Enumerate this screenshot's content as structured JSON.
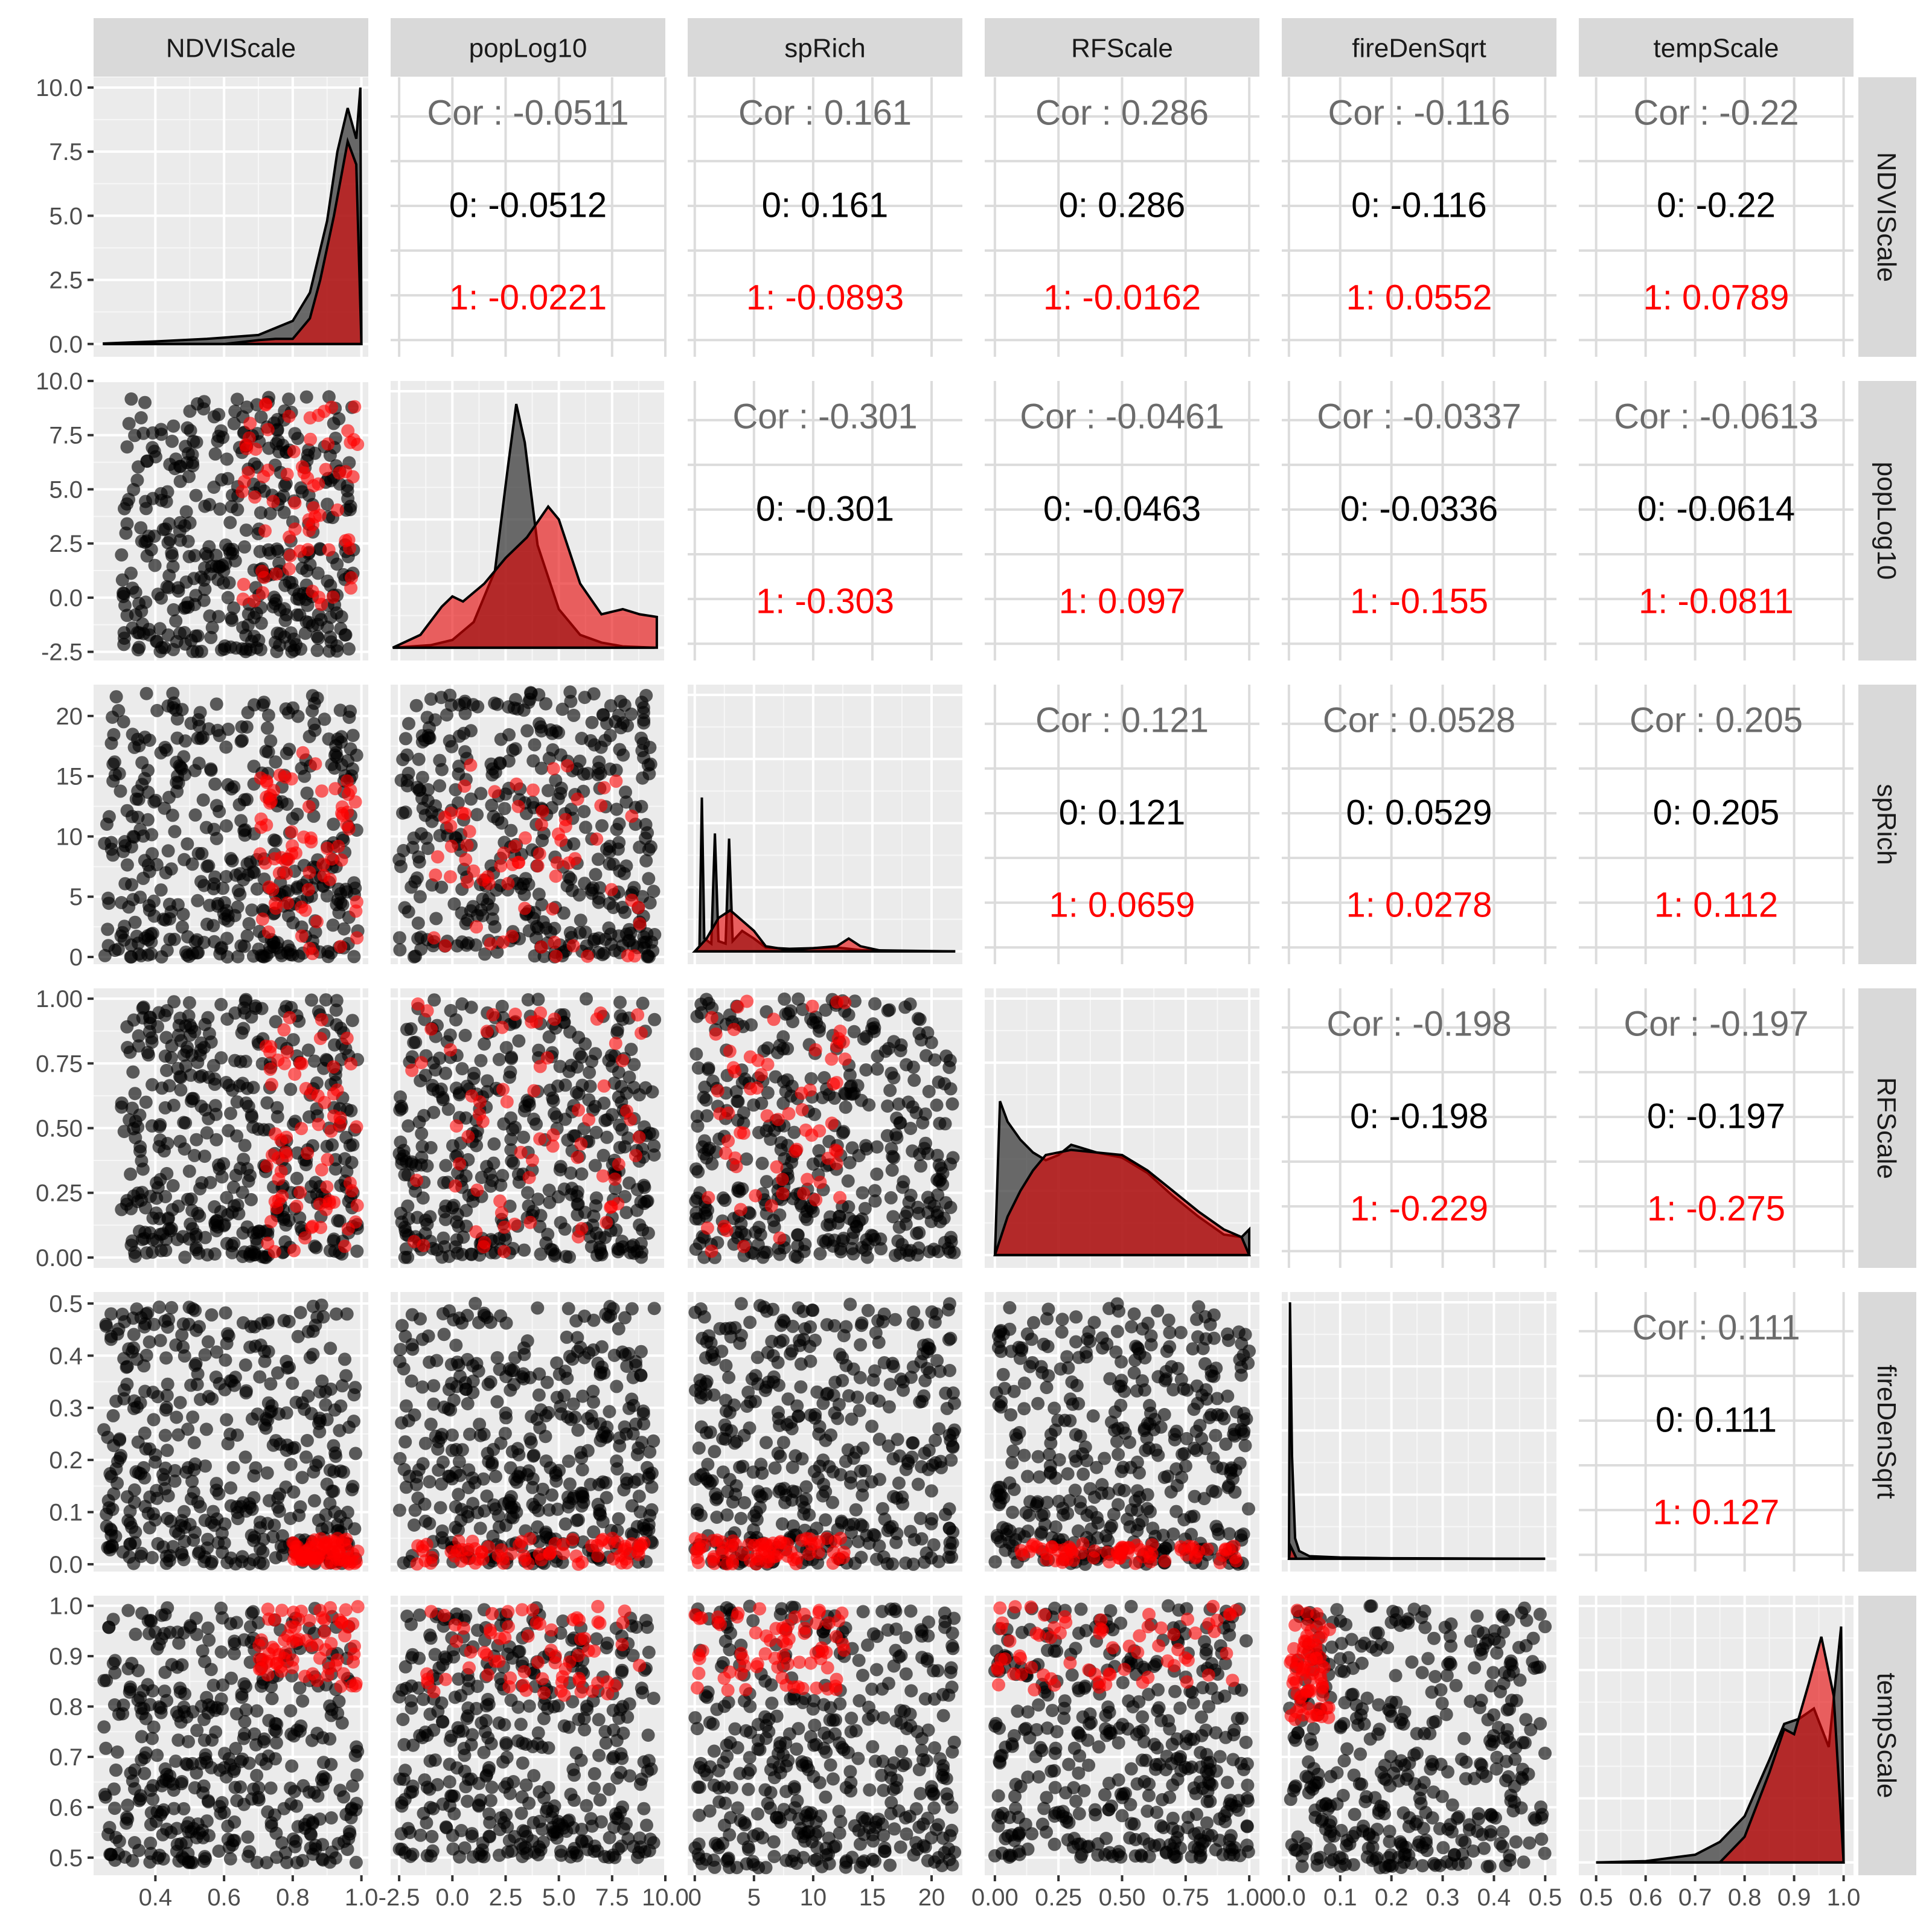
{
  "chart_data": {
    "type": "scatter",
    "title": "",
    "grid": true,
    "legend": "none",
    "group_colors": {
      "0": "#000000",
      "1": "#ff0000"
    },
    "variables": [
      {
        "name": "NDVIScale",
        "range": [
          0.22,
          1.02
        ],
        "ticks": [
          0.4,
          0.6,
          0.8,
          1.0
        ],
        "tick_labels": [
          "0.4",
          "0.6",
          "0.8",
          "1.0"
        ]
      },
      {
        "name": "popLog10",
        "range": [
          -2.9,
          10.0
        ],
        "ticks": [
          -2.5,
          0.0,
          2.5,
          5.0,
          7.5,
          10.0
        ],
        "tick_labels": [
          "-2.5",
          "0.0",
          "2.5",
          "5.0",
          "7.5",
          "10.0"
        ]
      },
      {
        "name": "spRich",
        "range": [
          -0.6,
          22.6
        ],
        "ticks": [
          0,
          5,
          10,
          15,
          20
        ],
        "tick_labels": [
          "0",
          "5",
          "10",
          "15",
          "20"
        ]
      },
      {
        "name": "RFScale",
        "range": [
          -0.04,
          1.04
        ],
        "ticks": [
          0.0,
          0.25,
          0.5,
          0.75,
          1.0
        ],
        "tick_labels": [
          "0.00",
          "0.25",
          "0.50",
          "0.75",
          "1.00"
        ]
      },
      {
        "name": "fireDenSqrt",
        "range": [
          -0.014,
          0.522
        ],
        "ticks": [
          0.0,
          0.1,
          0.2,
          0.3,
          0.4,
          0.5
        ],
        "tick_labels": [
          "0.0",
          "0.1",
          "0.2",
          "0.3",
          "0.4",
          "0.5"
        ]
      },
      {
        "name": "tempScale",
        "range": [
          0.465,
          1.02
        ],
        "ticks": [
          0.5,
          0.6,
          0.7,
          0.8,
          0.9,
          1.0
        ],
        "tick_labels": [
          "0.5",
          "0.6",
          "0.7",
          "0.8",
          "0.9",
          "1.0"
        ]
      }
    ],
    "diag_y_axis": {
      "range": [
        -0.5,
        10.4
      ],
      "ticks": [
        0.0,
        2.5,
        5.0,
        7.5,
        10.0
      ],
      "tick_labels": [
        "0.0",
        "2.5",
        "5.0",
        "7.5",
        "10.0"
      ]
    },
    "correlations": [
      {
        "row": "NDVIScale",
        "col": "popLog10",
        "cor": "Cor : -0.0511",
        "g0": "0: -0.0512",
        "g1": "1: -0.0221"
      },
      {
        "row": "NDVIScale",
        "col": "spRich",
        "cor": "Cor : 0.161",
        "g0": "0: 0.161",
        "g1": "1: -0.0893"
      },
      {
        "row": "NDVIScale",
        "col": "RFScale",
        "cor": "Cor : 0.286",
        "g0": "0: 0.286",
        "g1": "1: -0.0162"
      },
      {
        "row": "NDVIScale",
        "col": "fireDenSqrt",
        "cor": "Cor : -0.116",
        "g0": "0: -0.116",
        "g1": "1: 0.0552"
      },
      {
        "row": "NDVIScale",
        "col": "tempScale",
        "cor": "Cor : -0.22",
        "g0": "0: -0.22",
        "g1": "1: 0.0789"
      },
      {
        "row": "popLog10",
        "col": "spRich",
        "cor": "Cor : -0.301",
        "g0": "0: -0.301",
        "g1": "1: -0.303"
      },
      {
        "row": "popLog10",
        "col": "RFScale",
        "cor": "Cor : -0.0461",
        "g0": "0: -0.0463",
        "g1": "1: 0.097"
      },
      {
        "row": "popLog10",
        "col": "fireDenSqrt",
        "cor": "Cor : -0.0337",
        "g0": "0: -0.0336",
        "g1": "1: -0.155"
      },
      {
        "row": "popLog10",
        "col": "tempScale",
        "cor": "Cor : -0.0613",
        "g0": "0: -0.0614",
        "g1": "1: -0.0811"
      },
      {
        "row": "spRich",
        "col": "RFScale",
        "cor": "Cor : 0.121",
        "g0": "0: 0.121",
        "g1": "1: 0.0659"
      },
      {
        "row": "spRich",
        "col": "fireDenSqrt",
        "cor": "Cor : 0.0528",
        "g0": "0: 0.0529",
        "g1": "1: 0.0278"
      },
      {
        "row": "spRich",
        "col": "tempScale",
        "cor": "Cor : 0.205",
        "g0": "0: 0.205",
        "g1": "1: 0.112"
      },
      {
        "row": "RFScale",
        "col": "fireDenSqrt",
        "cor": "Cor : -0.198",
        "g0": "0: -0.198",
        "g1": "1: -0.229"
      },
      {
        "row": "RFScale",
        "col": "tempScale",
        "cor": "Cor : -0.197",
        "g0": "0: -0.197",
        "g1": "1: -0.275"
      },
      {
        "row": "fireDenSqrt",
        "col": "tempScale",
        "cor": "Cor : 0.111",
        "g0": "0: 0.111",
        "g1": "1: 0.127"
      }
    ],
    "densities": [
      {
        "var": "NDVIScale",
        "g0": [
          [
            0.25,
            0.02
          ],
          [
            0.4,
            0.1
          ],
          [
            0.55,
            0.2
          ],
          [
            0.7,
            0.35
          ],
          [
            0.8,
            0.9
          ],
          [
            0.85,
            2.0
          ],
          [
            0.9,
            4.8
          ],
          [
            0.93,
            7.5
          ],
          [
            0.96,
            9.2
          ],
          [
            0.985,
            8.0
          ],
          [
            0.997,
            10.0
          ],
          [
            1.0,
            0.0
          ]
        ],
        "g1": [
          [
            0.25,
            0.0
          ],
          [
            0.6,
            0.0
          ],
          [
            0.7,
            0.15
          ],
          [
            0.75,
            0.2
          ],
          [
            0.8,
            0.2
          ],
          [
            0.85,
            1.0
          ],
          [
            0.88,
            2.5
          ],
          [
            0.92,
            5.0
          ],
          [
            0.96,
            7.9
          ],
          [
            0.985,
            7.0
          ],
          [
            1.0,
            0.0
          ]
        ]
      },
      {
        "var": "popLog10",
        "g0": [
          [
            -2.8,
            0.0
          ],
          [
            -1,
            0.1
          ],
          [
            0,
            0.3
          ],
          [
            1,
            1.0
          ],
          [
            2,
            3.0
          ],
          [
            2.6,
            7.0
          ],
          [
            3,
            9.5
          ],
          [
            3.4,
            8.0
          ],
          [
            4,
            4.0
          ],
          [
            5,
            1.5
          ],
          [
            6,
            0.5
          ],
          [
            7,
            0.2
          ],
          [
            8,
            0.05
          ],
          [
            9.5,
            0.0
          ]
        ],
        "g1": [
          [
            -2.8,
            0.0
          ],
          [
            -1.5,
            0.5
          ],
          [
            -0.5,
            1.6
          ],
          [
            0,
            2.0
          ],
          [
            0.5,
            1.8
          ],
          [
            1.5,
            2.5
          ],
          [
            2.5,
            3.5
          ],
          [
            3.5,
            4.3
          ],
          [
            4.5,
            5.5
          ],
          [
            5,
            5.0
          ],
          [
            6,
            2.5
          ],
          [
            7,
            1.3
          ],
          [
            8,
            1.5
          ],
          [
            8.8,
            1.3
          ],
          [
            9.6,
            1.2
          ],
          [
            9.6,
            0.0
          ]
        ]
      },
      {
        "var": "spRich",
        "g0": [
          [
            0,
            0.0
          ],
          [
            0.4,
            0.2
          ],
          [
            0.6,
            6.0
          ],
          [
            0.8,
            0.5
          ],
          [
            1.4,
            0.3
          ],
          [
            1.7,
            4.6
          ],
          [
            2.0,
            0.4
          ],
          [
            2.6,
            0.3
          ],
          [
            2.9,
            4.4
          ],
          [
            3.2,
            0.4
          ],
          [
            4,
            0.8
          ],
          [
            5,
            0.5
          ],
          [
            6,
            0.15
          ],
          [
            8,
            0.1
          ],
          [
            12,
            0.15
          ],
          [
            14,
            0.05
          ],
          [
            22,
            0.0
          ]
        ],
        "g1": [
          [
            0,
            0.0
          ],
          [
            1,
            0.5
          ],
          [
            2,
            1.3
          ],
          [
            3,
            1.6
          ],
          [
            4,
            1.2
          ],
          [
            5,
            0.8
          ],
          [
            6,
            0.2
          ],
          [
            8,
            0.05
          ],
          [
            12,
            0.2
          ],
          [
            13,
            0.5
          ],
          [
            14,
            0.2
          ],
          [
            16,
            0.0
          ],
          [
            22,
            0.0
          ]
        ]
      },
      {
        "var": "RFScale",
        "g0": [
          [
            0.0,
            0.0
          ],
          [
            0.02,
            6.0
          ],
          [
            0.05,
            5.2
          ],
          [
            0.1,
            4.5
          ],
          [
            0.15,
            4.0
          ],
          [
            0.2,
            3.7
          ],
          [
            0.25,
            3.9
          ],
          [
            0.3,
            4.3
          ],
          [
            0.4,
            4.0
          ],
          [
            0.5,
            3.8
          ],
          [
            0.6,
            3.2
          ],
          [
            0.7,
            2.3
          ],
          [
            0.8,
            1.5
          ],
          [
            0.9,
            0.8
          ],
          [
            0.97,
            0.7
          ],
          [
            1.0,
            1.0
          ]
        ],
        "g1": [
          [
            0.0,
            0.0
          ],
          [
            0.05,
            1.5
          ],
          [
            0.1,
            2.5
          ],
          [
            0.15,
            3.3
          ],
          [
            0.2,
            3.9
          ],
          [
            0.3,
            4.1
          ],
          [
            0.4,
            4.0
          ],
          [
            0.5,
            3.9
          ],
          [
            0.6,
            3.3
          ],
          [
            0.7,
            2.5
          ],
          [
            0.8,
            1.7
          ],
          [
            0.9,
            1.0
          ],
          [
            0.97,
            0.7
          ],
          [
            1.0,
            0.0
          ]
        ]
      },
      {
        "var": "fireDenSqrt",
        "g0": [
          [
            0.0,
            0.0
          ],
          [
            0.002,
            10.0
          ],
          [
            0.006,
            4.0
          ],
          [
            0.012,
            0.8
          ],
          [
            0.02,
            0.3
          ],
          [
            0.04,
            0.1
          ],
          [
            0.1,
            0.05
          ],
          [
            0.2,
            0.02
          ],
          [
            0.5,
            0.0
          ]
        ],
        "g1": [
          [
            0.0,
            0.0
          ],
          [
            0.003,
            0.5
          ],
          [
            0.008,
            0.3
          ],
          [
            0.015,
            0.0
          ],
          [
            0.5,
            0.0
          ]
        ]
      },
      {
        "var": "tempScale",
        "g0": [
          [
            0.5,
            0.0
          ],
          [
            0.6,
            0.05
          ],
          [
            0.7,
            0.3
          ],
          [
            0.75,
            0.8
          ],
          [
            0.8,
            1.8
          ],
          [
            0.85,
            4.0
          ],
          [
            0.88,
            5.4
          ],
          [
            0.91,
            5.6
          ],
          [
            0.94,
            6.0
          ],
          [
            0.97,
            4.5
          ],
          [
            0.995,
            9.2
          ],
          [
            1.0,
            0.0
          ]
        ],
        "g1": [
          [
            0.5,
            0.0
          ],
          [
            0.75,
            0.0
          ],
          [
            0.8,
            1.0
          ],
          [
            0.85,
            3.5
          ],
          [
            0.88,
            5.2
          ],
          [
            0.9,
            5.0
          ],
          [
            0.93,
            7.0
          ],
          [
            0.955,
            8.8
          ],
          [
            0.98,
            6.5
          ],
          [
            1.0,
            0.0
          ]
        ]
      }
    ],
    "scatter_summary": [
      {
        "x": "NDVIScale",
        "y": "popLog10",
        "g0_x": [
          0.3,
          0.98
        ],
        "g0_y": [
          -2.5,
          9.3
        ],
        "g1_x": [
          0.65,
          0.99
        ],
        "g1_y": [
          -0.5,
          9.2
        ]
      },
      {
        "x": "NDVIScale",
        "y": "spRich",
        "g0_x": [
          0.25,
          0.99
        ],
        "g0_y": [
          0,
          22
        ],
        "g1_x": [
          0.7,
          0.99
        ],
        "g1_y": [
          0,
          17
        ]
      },
      {
        "x": "NDVIScale",
        "y": "RFScale",
        "g0_x": [
          0.3,
          0.99
        ],
        "g0_y": [
          0.0,
          1.0
        ],
        "g1_x": [
          0.72,
          0.99
        ],
        "g1_y": [
          0.02,
          0.93
        ]
      },
      {
        "x": "NDVIScale",
        "y": "fireDenSqrt",
        "g0_x": [
          0.25,
          0.99
        ],
        "g0_y": [
          0.0,
          0.5
        ],
        "g1_x": [
          0.8,
          0.99
        ],
        "g1_y": [
          0.0,
          0.05
        ]
      },
      {
        "x": "NDVIScale",
        "y": "tempScale",
        "g0_x": [
          0.25,
          0.99
        ],
        "g0_y": [
          0.49,
          1.0
        ],
        "g1_x": [
          0.7,
          0.99
        ],
        "g1_y": [
          0.84,
          1.0
        ]
      },
      {
        "x": "popLog10",
        "y": "spRich",
        "g0_x": [
          -2.5,
          9.5
        ],
        "g0_y": [
          0,
          22
        ],
        "g1_x": [
          -1.0,
          9.0
        ],
        "g1_y": [
          0,
          16
        ]
      },
      {
        "x": "popLog10",
        "y": "RFScale",
        "g0_x": [
          -2.5,
          9.5
        ],
        "g0_y": [
          0.0,
          1.0
        ],
        "g1_x": [
          -2.0,
          9.0
        ],
        "g1_y": [
          0.02,
          0.98
        ]
      },
      {
        "x": "popLog10",
        "y": "fireDenSqrt",
        "g0_x": [
          -2.5,
          9.5
        ],
        "g0_y": [
          0.0,
          0.5
        ],
        "g1_x": [
          -2.0,
          9.0
        ],
        "g1_y": [
          0.0,
          0.05
        ]
      },
      {
        "x": "popLog10",
        "y": "tempScale",
        "g0_x": [
          -2.5,
          9.5
        ],
        "g0_y": [
          0.5,
          1.0
        ],
        "g1_x": [
          -1.5,
          9.0
        ],
        "g1_y": [
          0.82,
          1.0
        ]
      },
      {
        "x": "spRich",
        "y": "RFScale",
        "g0_x": [
          0,
          22
        ],
        "g0_y": [
          0.0,
          1.0
        ],
        "g1_x": [
          0,
          13
        ],
        "g1_y": [
          0.02,
          1.0
        ]
      },
      {
        "x": "spRich",
        "y": "fireDenSqrt",
        "g0_x": [
          0,
          22
        ],
        "g0_y": [
          0.0,
          0.5
        ],
        "g1_x": [
          0,
          13
        ],
        "g1_y": [
          0.0,
          0.05
        ]
      },
      {
        "x": "spRich",
        "y": "tempScale",
        "g0_x": [
          0,
          22
        ],
        "g0_y": [
          0.48,
          1.0
        ],
        "g1_x": [
          0,
          13
        ],
        "g1_y": [
          0.83,
          1.0
        ]
      },
      {
        "x": "RFScale",
        "y": "fireDenSqrt",
        "g0_x": [
          0.0,
          1.0
        ],
        "g0_y": [
          0.0,
          0.5
        ],
        "g1_x": [
          0.1,
          0.95
        ],
        "g1_y": [
          0.0,
          0.04
        ]
      },
      {
        "x": "RFScale",
        "y": "tempScale",
        "g0_x": [
          0.0,
          1.0
        ],
        "g0_y": [
          0.5,
          1.0
        ],
        "g1_x": [
          0.0,
          0.95
        ],
        "g1_y": [
          0.83,
          1.0
        ]
      },
      {
        "x": "fireDenSqrt",
        "y": "tempScale",
        "g0_x": [
          0.0,
          0.5
        ],
        "g0_y": [
          0.48,
          1.0
        ],
        "g1_x": [
          0.0,
          0.08
        ],
        "g1_y": [
          0.77,
          1.0
        ]
      }
    ]
  }
}
